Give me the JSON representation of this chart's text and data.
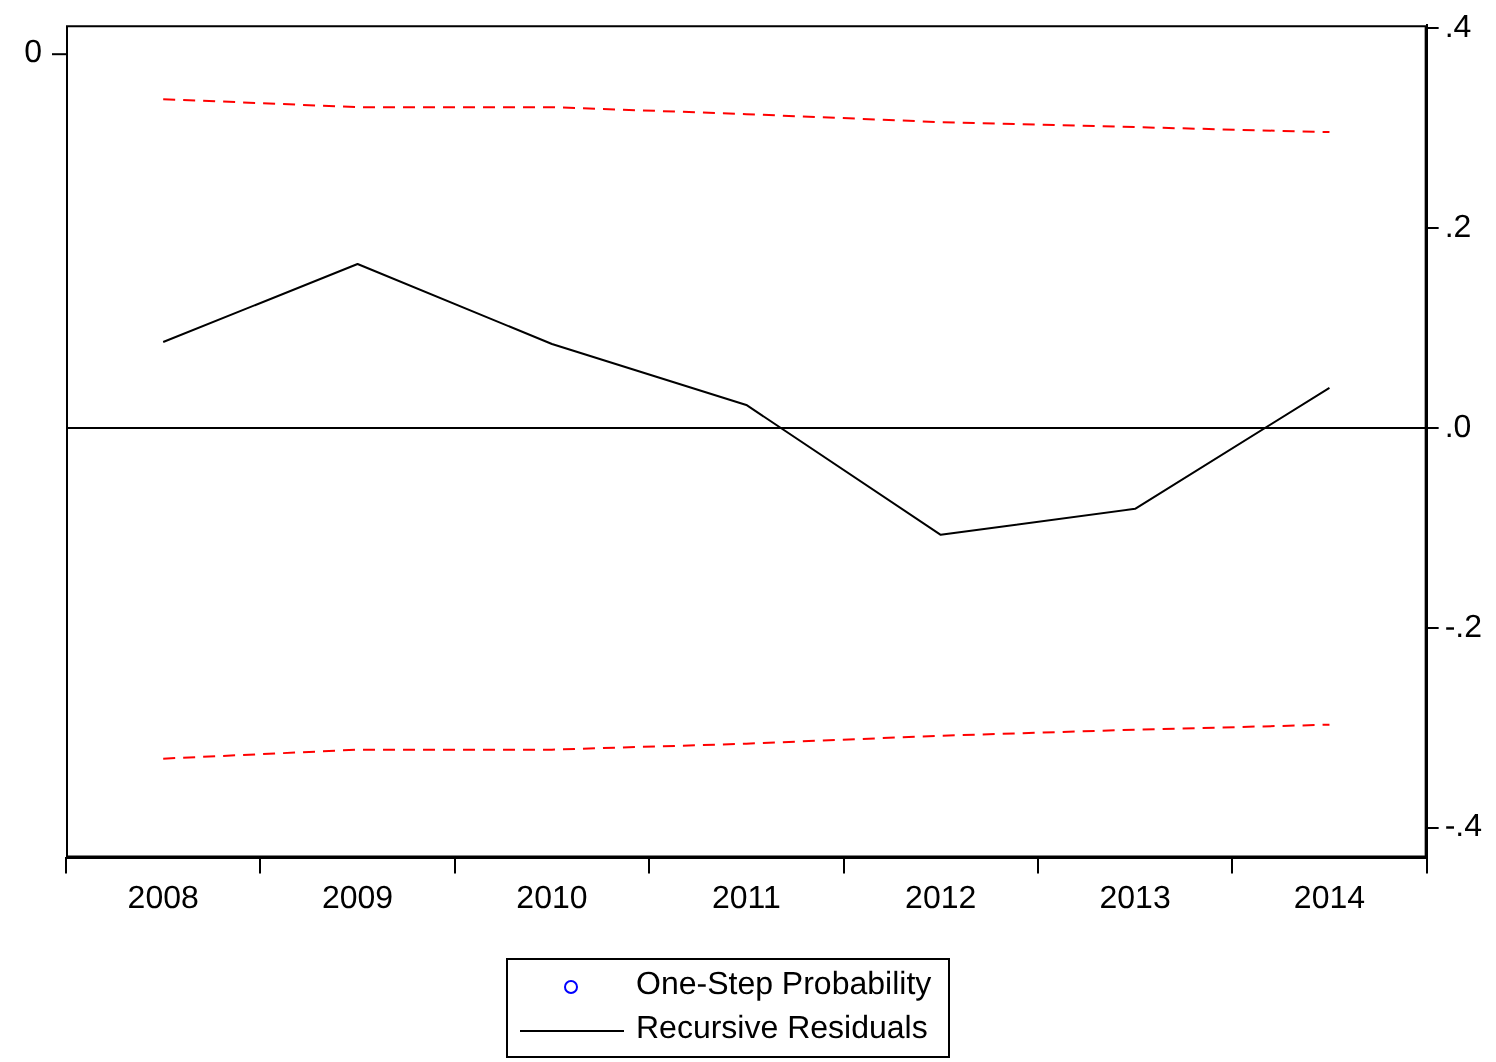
{
  "chart_data": {
    "type": "line",
    "categories": [
      "2008",
      "2009",
      "2010",
      "2011",
      "2012",
      "2013",
      "2014"
    ],
    "series": [
      {
        "name": "One-Step Probability",
        "color": "#0000ff",
        "type": "scatter",
        "values": [
          null,
          null,
          null,
          null,
          null,
          null,
          null
        ]
      },
      {
        "name": "Recursive Residuals",
        "color": "#000000",
        "values": [
          0.086,
          0.164,
          0.084,
          0.023,
          -0.107,
          -0.081,
          0.04
        ]
      },
      {
        "color": "#ff0000",
        "line_style": "dashed",
        "values": [
          0.329,
          0.321,
          0.321,
          0.314,
          0.306,
          0.301,
          0.296
        ]
      },
      {
        "color": "#ff0000",
        "line_style": "dashed",
        "values": [
          -0.331,
          -0.322,
          -0.322,
          -0.316,
          -0.308,
          -0.302,
          -0.297
        ]
      }
    ],
    "ylim": [
      -0.43,
      0.403
    ],
    "yticks": [
      {
        "value": 0.4,
        "label": ".4"
      },
      {
        "value": 0.2,
        "label": ".2"
      },
      {
        "value": 0,
        "label": ".0"
      },
      {
        "value": -0.2,
        "label": "-.2"
      },
      {
        "value": -0.4,
        "label": "-.4"
      }
    ],
    "annotations": [
      "0"
    ],
    "ref_lines": [
      {
        "axis": "y",
        "value": 0,
        "color": "#000000"
      }
    ],
    "grid": false,
    "legend": "bottom",
    "marker": "none",
    "line_style": "solid"
  }
}
